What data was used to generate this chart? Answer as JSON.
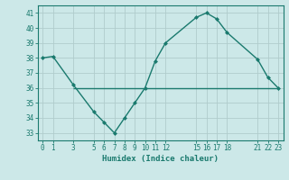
{
  "x": [
    0,
    1,
    3,
    5,
    6,
    7,
    8,
    9,
    10,
    11,
    12,
    15,
    16,
    17,
    18,
    21,
    22,
    23
  ],
  "y": [
    38.0,
    38.1,
    36.2,
    34.4,
    33.7,
    33.0,
    34.0,
    35.0,
    36.0,
    37.8,
    39.0,
    40.7,
    41.0,
    40.6,
    39.7,
    37.9,
    36.7,
    36.0
  ],
  "hline_y": 36.0,
  "hline_x_start": 3.0,
  "hline_x_end": 23.0,
  "xlim": [
    -0.5,
    23.5
  ],
  "ylim": [
    32.5,
    41.5
  ],
  "yticks": [
    33,
    34,
    35,
    36,
    37,
    38,
    39,
    40,
    41
  ],
  "xticks": [
    0,
    1,
    3,
    5,
    6,
    7,
    8,
    9,
    10,
    11,
    12,
    15,
    16,
    17,
    18,
    21,
    22,
    23
  ],
  "xlabel": "Humidex (Indice chaleur)",
  "line_color": "#1a7a6e",
  "bg_color": "#cce8e8",
  "grid_color": "#b0cccc",
  "tick_color": "#1a7a6e"
}
